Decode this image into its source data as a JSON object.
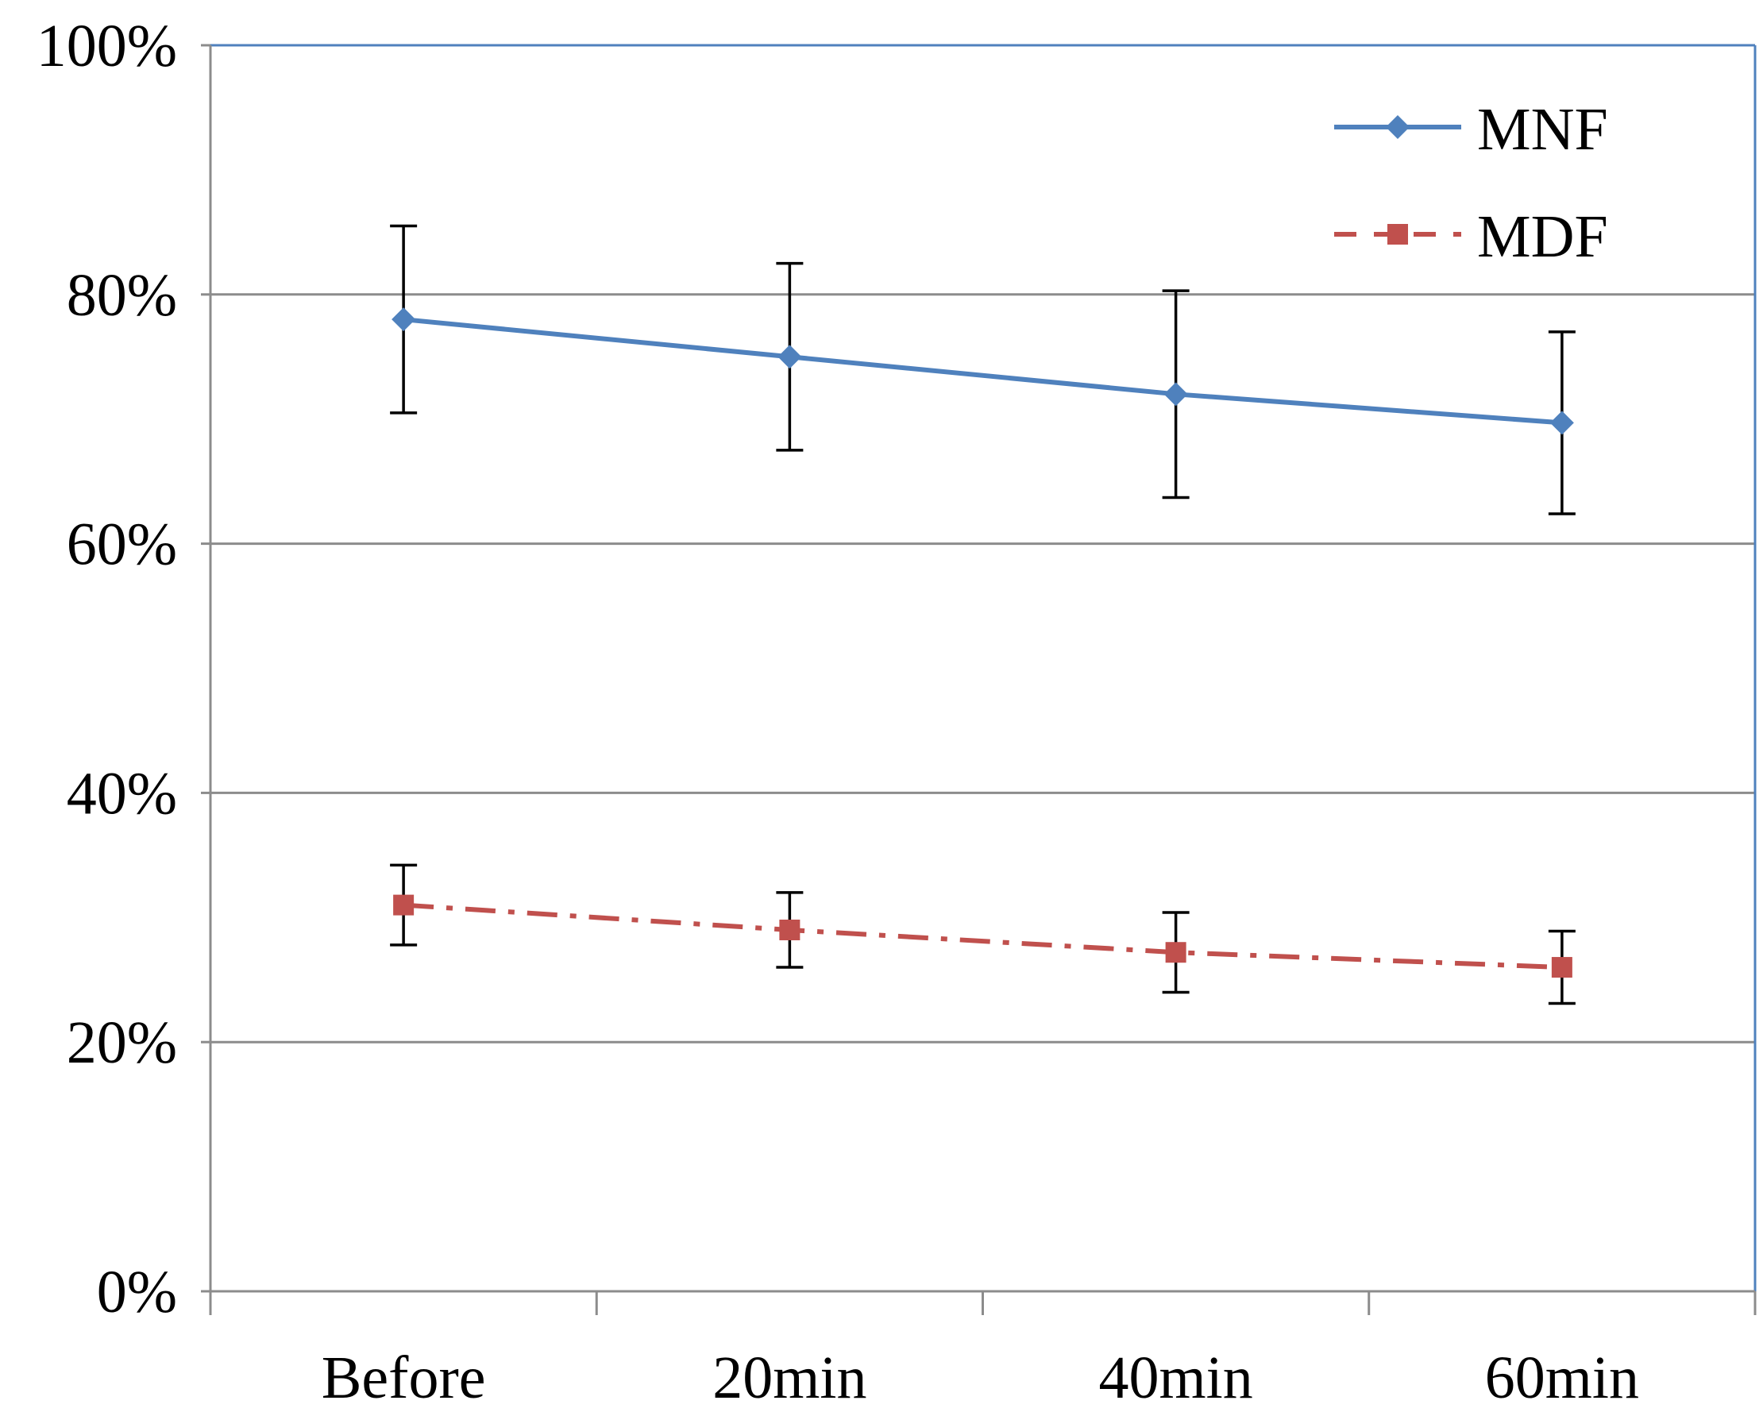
{
  "chart_data": {
    "type": "line",
    "title": "",
    "xlabel": "",
    "ylabel": "",
    "categories": [
      "Before",
      "20min",
      "40min",
      "60min"
    ],
    "ylim": [
      0,
      100
    ],
    "y_ticks": [
      0,
      20,
      40,
      60,
      80,
      100
    ],
    "y_tick_labels": [
      "0%",
      "20%",
      "40%",
      "60%",
      "80%",
      "100%"
    ],
    "grid": true,
    "legend_position": "top-right",
    "series": [
      {
        "name": "MNF",
        "color": "#4f81bd",
        "line_style": "solid",
        "marker": "diamond",
        "values": [
          78,
          75,
          72,
          69.7
        ],
        "error": [
          7.5,
          7.5,
          8.3,
          7.3
        ]
      },
      {
        "name": "MDF",
        "color": "#c0504d",
        "line_style": "dash-dot",
        "marker": "square",
        "values": [
          31,
          29,
          27.2,
          26
        ],
        "error": [
          3.2,
          3.0,
          3.2,
          2.9
        ]
      }
    ]
  }
}
